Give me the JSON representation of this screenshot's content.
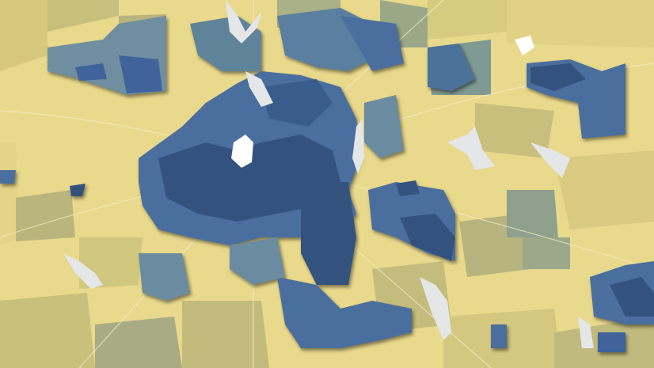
{
  "map": {
    "type": "choropleth",
    "palette": {
      "low": "#ecdc8a",
      "low_mid": "#cfc27a",
      "mid": "#9aa888",
      "mid_high": "#6b8ca0",
      "high": "#4a6f9e",
      "highest": "#2f4d7c",
      "water": "#e4e6e8",
      "roads": "#f3ecc8"
    }
  }
}
